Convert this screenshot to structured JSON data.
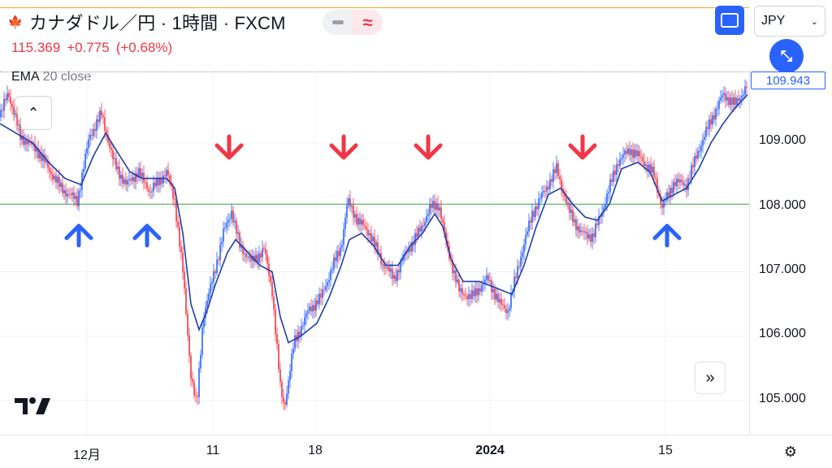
{
  "header": {
    "flag_icon": "canada-flag-icon",
    "symbol_title": "カナダドル／円 · 1時間 · FXCM",
    "last": "115.369",
    "change": "+0.775",
    "change_pct": "(+0.68%)"
  },
  "indicator": {
    "name": "EMA",
    "params": "20 close"
  },
  "toolbar": {
    "currency": "JPY",
    "fullscreen_icon": "fullscreen-icon",
    "collapse_icon": "collapse-icon",
    "scroll_icon": "double-chevron-right-icon",
    "settings_icon": "settings-gear-icon"
  },
  "price_label": "109.943",
  "colors": {
    "up": "#2962ff",
    "down": "#f23645",
    "ema": "#1e3fae",
    "hline": "#4caf50",
    "accent": "#2962ff"
  },
  "chart_data": {
    "type": "line",
    "title": "",
    "y_ticks": [
      "109.000",
      "108.000",
      "107.000",
      "106.000",
      "105.000"
    ],
    "x_ticks": [
      "12月",
      "11",
      "18",
      "2024",
      "15"
    ],
    "ylim": [
      104.45,
      110.3
    ],
    "horizontal_line": 108.05,
    "series": [
      {
        "name": "EMA 20 close",
        "points": [
          [
            0,
            109.3
          ],
          [
            20,
            109.15
          ],
          [
            40,
            109.0
          ],
          [
            60,
            108.7
          ],
          [
            80,
            108.45
          ],
          [
            100,
            108.35
          ],
          [
            115,
            108.8
          ],
          [
            130,
            109.15
          ],
          [
            145,
            108.85
          ],
          [
            160,
            108.55
          ],
          [
            175,
            108.45
          ],
          [
            190,
            108.45
          ],
          [
            205,
            108.45
          ],
          [
            215,
            108.3
          ],
          [
            225,
            107.6
          ],
          [
            235,
            106.5
          ],
          [
            245,
            106.1
          ],
          [
            255,
            106.4
          ],
          [
            265,
            106.8
          ],
          [
            280,
            107.3
          ],
          [
            290,
            107.5
          ],
          [
            305,
            107.3
          ],
          [
            320,
            107.1
          ],
          [
            335,
            107.0
          ],
          [
            345,
            106.3
          ],
          [
            355,
            105.9
          ],
          [
            370,
            106.0
          ],
          [
            390,
            106.2
          ],
          [
            405,
            106.6
          ],
          [
            420,
            107.1
          ],
          [
            430,
            107.5
          ],
          [
            445,
            107.6
          ],
          [
            460,
            107.4
          ],
          [
            475,
            107.1
          ],
          [
            490,
            107.1
          ],
          [
            505,
            107.4
          ],
          [
            520,
            107.6
          ],
          [
            535,
            107.9
          ],
          [
            545,
            107.7
          ],
          [
            555,
            107.2
          ],
          [
            570,
            106.85
          ],
          [
            590,
            106.85
          ],
          [
            610,
            106.75
          ],
          [
            630,
            106.65
          ],
          [
            645,
            107.1
          ],
          [
            660,
            107.7
          ],
          [
            675,
            108.2
          ],
          [
            690,
            108.3
          ],
          [
            705,
            108.05
          ],
          [
            720,
            107.85
          ],
          [
            735,
            107.8
          ],
          [
            750,
            108.05
          ],
          [
            765,
            108.6
          ],
          [
            785,
            108.7
          ],
          [
            800,
            108.55
          ],
          [
            815,
            108.1
          ],
          [
            830,
            108.2
          ],
          [
            845,
            108.3
          ],
          [
            860,
            108.6
          ],
          [
            875,
            109.0
          ],
          [
            890,
            109.3
          ],
          [
            905,
            109.55
          ],
          [
            920,
            109.75
          ]
        ]
      },
      {
        "name": "price",
        "points": [
          [
            0,
            109.4
          ],
          [
            10,
            109.8
          ],
          [
            25,
            109.1
          ],
          [
            45,
            108.9
          ],
          [
            60,
            108.6
          ],
          [
            75,
            108.3
          ],
          [
            95,
            108.1
          ],
          [
            110,
            109.1
          ],
          [
            125,
            109.45
          ],
          [
            140,
            108.7
          ],
          [
            155,
            108.35
          ],
          [
            170,
            108.55
          ],
          [
            185,
            108.25
          ],
          [
            205,
            108.55
          ],
          [
            215,
            108.1
          ],
          [
            225,
            107.0
          ],
          [
            235,
            105.4
          ],
          [
            242,
            104.9
          ],
          [
            250,
            106.3
          ],
          [
            262,
            106.9
          ],
          [
            275,
            107.6
          ],
          [
            285,
            107.95
          ],
          [
            295,
            107.4
          ],
          [
            310,
            107.15
          ],
          [
            325,
            107.35
          ],
          [
            335,
            106.7
          ],
          [
            345,
            105.2
          ],
          [
            350,
            104.9
          ],
          [
            362,
            105.9
          ],
          [
            380,
            106.4
          ],
          [
            395,
            106.6
          ],
          [
            410,
            107.1
          ],
          [
            420,
            107.4
          ],
          [
            428,
            108.1
          ],
          [
            440,
            107.8
          ],
          [
            455,
            107.6
          ],
          [
            470,
            107.15
          ],
          [
            485,
            106.9
          ],
          [
            500,
            107.3
          ],
          [
            515,
            107.6
          ],
          [
            530,
            108.0
          ],
          [
            540,
            108.05
          ],
          [
            550,
            107.4
          ],
          [
            565,
            106.7
          ],
          [
            580,
            106.6
          ],
          [
            600,
            106.9
          ],
          [
            615,
            106.5
          ],
          [
            625,
            106.4
          ],
          [
            640,
            107.2
          ],
          [
            655,
            107.9
          ],
          [
            670,
            108.25
          ],
          [
            685,
            108.6
          ],
          [
            700,
            107.95
          ],
          [
            715,
            107.6
          ],
          [
            730,
            107.55
          ],
          [
            745,
            108.1
          ],
          [
            760,
            108.7
          ],
          [
            775,
            108.9
          ],
          [
            790,
            108.75
          ],
          [
            805,
            108.5
          ],
          [
            815,
            108.0
          ],
          [
            830,
            108.4
          ],
          [
            845,
            108.35
          ],
          [
            860,
            108.9
          ],
          [
            875,
            109.35
          ],
          [
            890,
            109.75
          ],
          [
            905,
            109.6
          ],
          [
            920,
            109.9
          ]
        ]
      }
    ],
    "signals": [
      {
        "type": "buy",
        "x": 97
      },
      {
        "type": "buy",
        "x": 181
      },
      {
        "type": "sell",
        "x": 282
      },
      {
        "type": "sell",
        "x": 423
      },
      {
        "type": "sell",
        "x": 527
      },
      {
        "type": "sell",
        "x": 717
      },
      {
        "type": "buy",
        "x": 821
      }
    ]
  }
}
